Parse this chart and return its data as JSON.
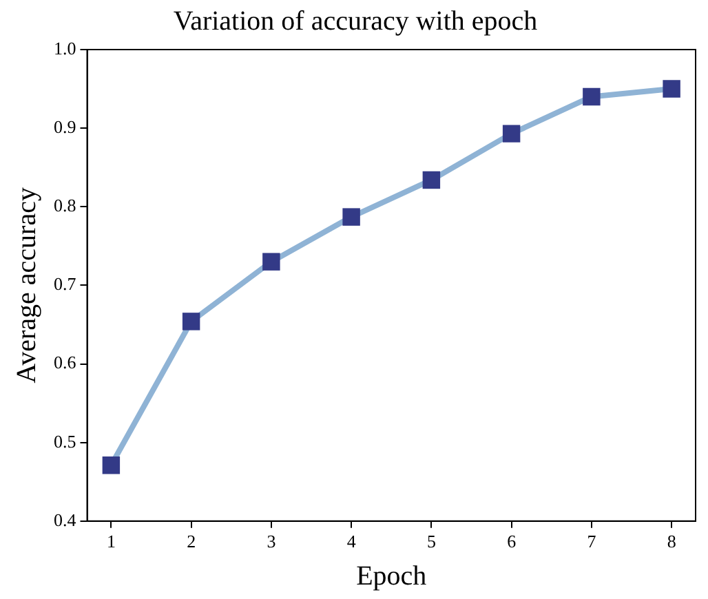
{
  "chart_data": {
    "type": "line",
    "title": "Variation of accuracy with epoch",
    "xlabel": "Epoch",
    "ylabel": "Average accuracy",
    "x": [
      1,
      2,
      3,
      4,
      5,
      6,
      7,
      8
    ],
    "series": [
      {
        "color": "#8fb3d5",
        "colors": [
          "#333a87",
          "#333a87",
          "#333a87",
          "#333a87",
          "#333a87",
          "#333a87",
          "#333a87",
          "#333a87"
        ],
        "values": [
          0.471,
          0.654,
          0.73,
          0.787,
          0.834,
          0.893,
          0.94,
          0.95
        ]
      }
    ],
    "xlim": [
      0.7,
      8.3
    ],
    "xticks": [
      1,
      2,
      3,
      4,
      5,
      6,
      7,
      8
    ],
    "ylim": [
      0.4,
      1.0
    ],
    "yticks": [
      {
        "value": 0.4,
        "label": "0.4"
      },
      {
        "value": 0.5,
        "label": "0.5"
      },
      {
        "value": 0.6,
        "label": "0.6"
      },
      {
        "value": 0.7,
        "label": "0.7"
      },
      {
        "value": 0.8,
        "label": "0.8"
      },
      {
        "value": 0.9,
        "label": "0.9"
      },
      {
        "value": 1.0,
        "label": "1.0"
      }
    ],
    "grid": false,
    "legend": false,
    "marker": "square",
    "line_style": "solid"
  }
}
